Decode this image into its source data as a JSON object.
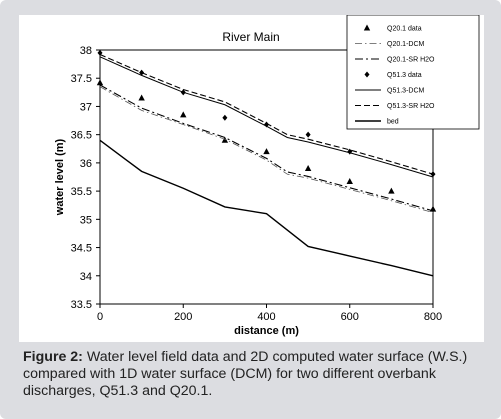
{
  "caption": {
    "label": "Figure 2:",
    "text": " Water level field data and 2D computed water surface (W.S.) compared with 1D water surface (DCM) for two different overbank discharges, Q51.3 and Q20.1."
  },
  "chart_data": {
    "type": "line",
    "title": "River Main",
    "xlabel": "distance (m)",
    "ylabel": "water level (m)",
    "xlim": [
      0,
      800
    ],
    "ylim": [
      33.5,
      38
    ],
    "xticks": [
      "0",
      "200",
      "400",
      "600",
      "800"
    ],
    "yticks": [
      "33.5",
      "34",
      "34.5",
      "35",
      "35.5",
      "36",
      "36.5",
      "37",
      "37.5",
      "38"
    ],
    "grid": false,
    "legend_position": "top-right",
    "series": [
      {
        "name": "Q20.1 data",
        "style": "triangle",
        "color": "#000000",
        "x": [
          0,
          100,
          200,
          300,
          400,
          500,
          600,
          700,
          800
        ],
        "y": [
          37.42,
          37.15,
          36.85,
          36.4,
          36.2,
          35.9,
          35.67,
          35.5,
          35.18
        ]
      },
      {
        "name": "Q20.1-DCM",
        "style": "dashdot-thin",
        "color": "#555555",
        "x": [
          0,
          100,
          200,
          300,
          400,
          450,
          500,
          600,
          700,
          800
        ],
        "y": [
          37.35,
          36.93,
          36.68,
          36.42,
          36.05,
          35.8,
          35.73,
          35.53,
          35.33,
          35.12
        ]
      },
      {
        "name": "Q20.1-SR H2O",
        "style": "dashdot",
        "color": "#000000",
        "x": [
          0,
          100,
          200,
          300,
          400,
          450,
          500,
          600,
          700,
          800
        ],
        "y": [
          37.38,
          36.97,
          36.7,
          36.45,
          36.08,
          35.84,
          35.76,
          35.56,
          35.36,
          35.15
        ]
      },
      {
        "name": "Q51.3 data",
        "style": "diamond",
        "color": "#000000",
        "x": [
          0,
          100,
          200,
          300,
          400,
          500,
          600,
          800
        ],
        "y": [
          37.95,
          37.6,
          37.25,
          36.8,
          36.68,
          36.5,
          36.2,
          35.8
        ]
      },
      {
        "name": "Q51.3-DCM",
        "style": "solid",
        "color": "#000000",
        "x": [
          0,
          100,
          200,
          300,
          400,
          450,
          500,
          600,
          700,
          800
        ],
        "y": [
          37.88,
          37.55,
          37.25,
          37.03,
          36.65,
          36.45,
          36.37,
          36.18,
          35.97,
          35.75
        ]
      },
      {
        "name": "Q51.3-SR H2O",
        "style": "dashed",
        "color": "#000000",
        "x": [
          0,
          100,
          200,
          300,
          400,
          450,
          500,
          600,
          700,
          800
        ],
        "y": [
          37.92,
          37.6,
          37.3,
          37.08,
          36.7,
          36.5,
          36.42,
          36.23,
          36.02,
          35.8
        ]
      },
      {
        "name": "bed",
        "style": "solid-thick",
        "color": "#000000",
        "x": [
          0,
          100,
          200,
          300,
          400,
          500,
          600,
          700,
          800
        ],
        "y": [
          36.4,
          35.85,
          35.55,
          35.22,
          35.1,
          34.52,
          34.35,
          34.18,
          34.0
        ]
      }
    ]
  }
}
